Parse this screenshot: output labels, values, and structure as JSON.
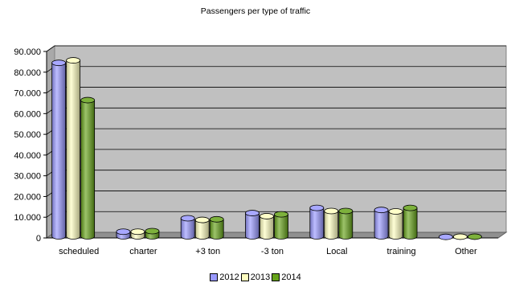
{
  "chart_data": {
    "type": "bar",
    "title": "Passengers per type of traffic",
    "categories": [
      "scheduled",
      "charter",
      "+3 ton",
      "-3 ton",
      "Local",
      "training",
      "Other"
    ],
    "series": [
      {
        "name": "2012",
        "values": [
          84500,
          3000,
          9500,
          12000,
          14500,
          13500,
          500
        ],
        "color": "#9999ff"
      },
      {
        "name": "2013",
        "values": [
          85700,
          3000,
          8700,
          10500,
          13000,
          12800,
          600
        ],
        "color": "#ffffc0"
      },
      {
        "name": "2014",
        "values": [
          66500,
          3300,
          9000,
          11400,
          13000,
          14500,
          600
        ],
        "color": "#66a31a"
      }
    ],
    "yticks": [
      "0",
      "10.000",
      "20.000",
      "30.000",
      "40.000",
      "50.000",
      "60.000",
      "70.000",
      "80.000",
      "90.000"
    ],
    "ylim": [
      0,
      90000
    ],
    "grid": true,
    "legend_position": "bottom",
    "plot_background": "#c0c0c0"
  }
}
